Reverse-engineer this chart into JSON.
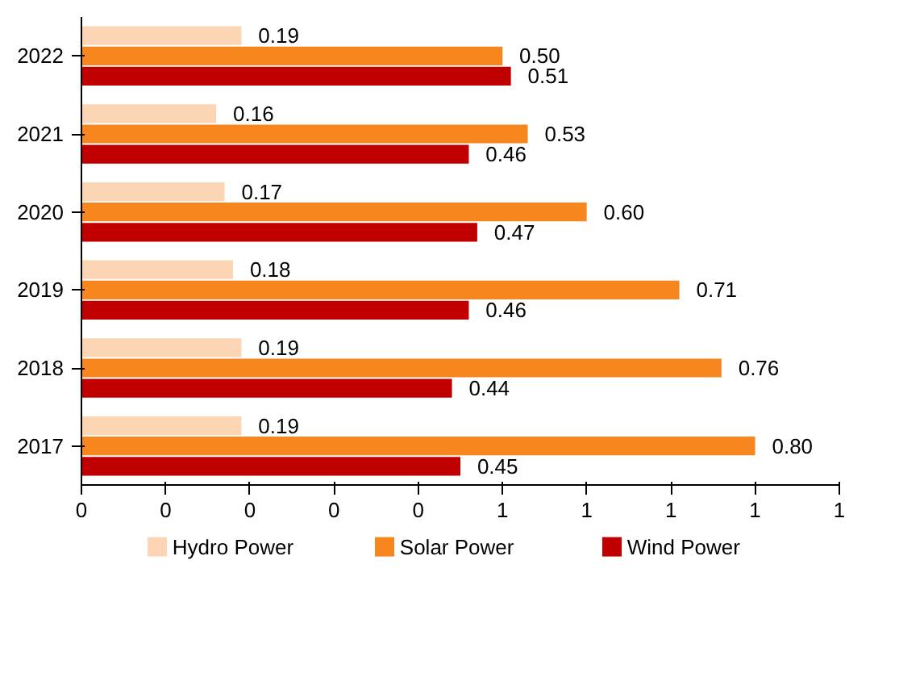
{
  "chart_data": {
    "type": "bar",
    "orientation": "horizontal",
    "categories": [
      "2022",
      "2021",
      "2020",
      "2019",
      "2018",
      "2017"
    ],
    "series": [
      {
        "name": "Hydro Power",
        "color": "#fcd5b4",
        "values": [
          0.19,
          0.16,
          0.17,
          0.18,
          0.19,
          0.19
        ],
        "value_labels": [
          "0.19",
          "0.16",
          "0.17",
          "0.18",
          "0.19",
          "0.19"
        ]
      },
      {
        "name": "Solar Power",
        "color": "#f7861e",
        "values": [
          0.5,
          0.53,
          0.6,
          0.71,
          0.76,
          0.8
        ],
        "value_labels": [
          "0.50",
          "0.53",
          "0.60",
          "0.71",
          "0.76",
          "0.80"
        ]
      },
      {
        "name": "Wind Power",
        "color": "#c00000",
        "values": [
          0.51,
          0.46,
          0.47,
          0.46,
          0.44,
          0.45
        ],
        "value_labels": [
          "0.51",
          "0.46",
          "0.47",
          "0.46",
          "0.44",
          "0.45"
        ]
      }
    ],
    "xlim": [
      0,
      0.9
    ],
    "xticks": [
      {
        "value": 0,
        "label": "0"
      },
      {
        "value": 0.1,
        "label": "0"
      },
      {
        "value": 0.2,
        "label": "0"
      },
      {
        "value": 0.3,
        "label": "0"
      },
      {
        "value": 0.4,
        "label": "0"
      },
      {
        "value": 0.5,
        "label": "1"
      },
      {
        "value": 0.6,
        "label": "1"
      },
      {
        "value": 0.7,
        "label": "1"
      },
      {
        "value": 0.8,
        "label": "1"
      },
      {
        "value": 0.9,
        "label": "1"
      }
    ],
    "grid": false,
    "legend": "bottom"
  }
}
